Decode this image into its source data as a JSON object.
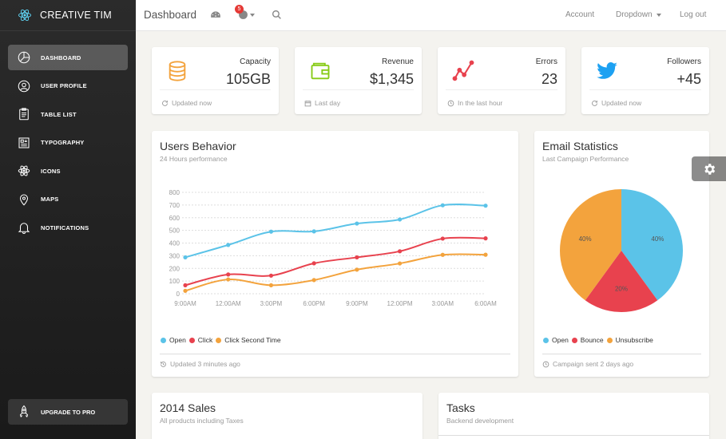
{
  "brand": {
    "name": "CREATIVE TIM"
  },
  "sidebar": {
    "items": [
      {
        "label": "DASHBOARD",
        "icon": "pie-chart-icon",
        "active": true
      },
      {
        "label": "USER PROFILE",
        "icon": "user-icon",
        "active": false
      },
      {
        "label": "TABLE LIST",
        "icon": "clipboard-icon",
        "active": false
      },
      {
        "label": "TYPOGRAPHY",
        "icon": "news-icon",
        "active": false
      },
      {
        "label": "ICONS",
        "icon": "atom-icon",
        "active": false
      },
      {
        "label": "MAPS",
        "icon": "map-pin-icon",
        "active": false
      },
      {
        "label": "NOTIFICATIONS",
        "icon": "bell-icon",
        "active": false
      }
    ],
    "upgrade": {
      "label": "UPGRADE TO PRO",
      "icon": "rocket-icon"
    }
  },
  "topbar": {
    "title": "Dashboard",
    "notification_count": "5",
    "links": {
      "account": "Account",
      "dropdown": "Dropdown",
      "logout": "Log out"
    }
  },
  "stats": [
    {
      "label": "Capacity",
      "value": "105GB",
      "footer": "Updated now",
      "icon": "database-icon",
      "icon_color": "#f3a33d",
      "footer_icon": "refresh-icon"
    },
    {
      "label": "Revenue",
      "value": "$1,345",
      "footer": "Last day",
      "icon": "wallet-icon",
      "icon_color": "#87cb16",
      "footer_icon": "calendar-icon"
    },
    {
      "label": "Errors",
      "value": "23",
      "footer": "In the last hour",
      "icon": "graph-icon",
      "icon_color": "#e8424e",
      "footer_icon": "clock-icon"
    },
    {
      "label": "Followers",
      "value": "+45",
      "footer": "Updated now",
      "icon": "twitter-icon",
      "icon_color": "#1da1f2",
      "footer_icon": "refresh-icon"
    }
  ],
  "users_behavior": {
    "title": "Users Behavior",
    "subtitle": "24 Hours performance",
    "footer": "Updated 3 minutes ago"
  },
  "email_stats": {
    "title": "Email Statistics",
    "subtitle": "Last Campaign Performance",
    "footer": "Campaign sent 2 days ago"
  },
  "sales": {
    "title": "2014 Sales",
    "subtitle": "All products including Taxes"
  },
  "tasks": {
    "title": "Tasks",
    "subtitle": "Backend development"
  },
  "colors": {
    "blue": "#5bc3e8",
    "red": "#e8424e",
    "orange": "#f3a33d"
  },
  "chart_data": [
    {
      "type": "line",
      "categories": [
        "9:00AM",
        "12:00AM",
        "3:00PM",
        "6:00PM",
        "9:00PM",
        "12:00PM",
        "3:00AM",
        "6:00AM"
      ],
      "ylim": [
        0,
        800
      ],
      "yticks": [
        0,
        100,
        200,
        300,
        400,
        500,
        600,
        700,
        800
      ],
      "grid": true,
      "legend_position": "bottom-left",
      "series": [
        {
          "name": "Open",
          "color": "#5bc3e8",
          "values": [
            287,
            385,
            490,
            492,
            554,
            586,
            698,
            695
          ]
        },
        {
          "name": "Click",
          "color": "#e8424e",
          "values": [
            67,
            152,
            143,
            240,
            287,
            335,
            435,
            437
          ]
        },
        {
          "name": "Click Second Time",
          "color": "#f3a33d",
          "values": [
            23,
            113,
            67,
            108,
            190,
            239,
            307,
            308
          ]
        }
      ]
    },
    {
      "type": "pie",
      "legend_position": "bottom-left",
      "slices": [
        {
          "name": "Open",
          "value": 40,
          "label": "40%",
          "color": "#5bc3e8"
        },
        {
          "name": "Bounce",
          "value": 20,
          "label": "20%",
          "color": "#e8424e"
        },
        {
          "name": "Unsubscribe",
          "value": 40,
          "label": "40%",
          "color": "#f3a33d"
        }
      ]
    }
  ]
}
